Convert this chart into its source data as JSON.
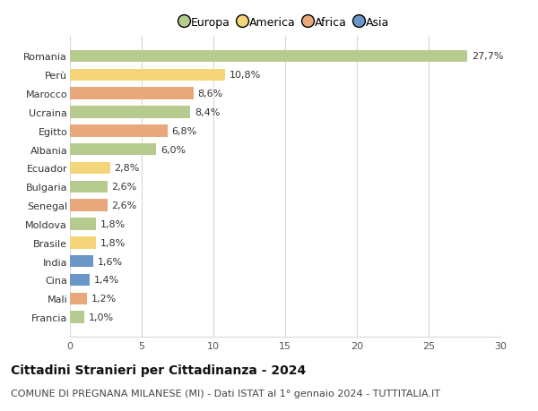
{
  "categories": [
    "Francia",
    "Mali",
    "Cina",
    "India",
    "Brasile",
    "Moldova",
    "Senegal",
    "Bulgaria",
    "Ecuador",
    "Albania",
    "Egitto",
    "Ucraina",
    "Marocco",
    "Perù",
    "Romania"
  ],
  "values": [
    1.0,
    1.2,
    1.4,
    1.6,
    1.8,
    1.8,
    2.6,
    2.6,
    2.8,
    6.0,
    6.8,
    8.4,
    8.6,
    10.8,
    27.7
  ],
  "labels": [
    "1,0%",
    "1,2%",
    "1,4%",
    "1,6%",
    "1,8%",
    "1,8%",
    "2,6%",
    "2,6%",
    "2,8%",
    "6,0%",
    "6,8%",
    "8,4%",
    "8,6%",
    "10,8%",
    "27,7%"
  ],
  "colors": [
    "#b5cc8e",
    "#e8a87c",
    "#6b96c8",
    "#6b96c8",
    "#f5d57a",
    "#b5cc8e",
    "#e8a87c",
    "#b5cc8e",
    "#f5d57a",
    "#b5cc8e",
    "#e8a87c",
    "#b5cc8e",
    "#e8a87c",
    "#f5d57a",
    "#b5cc8e"
  ],
  "legend_labels": [
    "Europa",
    "America",
    "Africa",
    "Asia"
  ],
  "legend_colors": [
    "#b5cc8e",
    "#f5d57a",
    "#e8a87c",
    "#6b96c8"
  ],
  "title": "Cittadini Stranieri per Cittadinanza - 2024",
  "subtitle": "COMUNE DI PREGNANA MILANESE (MI) - Dati ISTAT al 1° gennaio 2024 - TUTTITALIA.IT",
  "xlim": [
    0,
    30
  ],
  "xticks": [
    0,
    5,
    10,
    15,
    20,
    25,
    30
  ],
  "background_color": "#ffffff",
  "grid_color": "#d8d8d8",
  "bar_height": 0.65,
  "title_fontsize": 10,
  "subtitle_fontsize": 8,
  "label_fontsize": 8,
  "tick_fontsize": 8,
  "legend_fontsize": 9
}
